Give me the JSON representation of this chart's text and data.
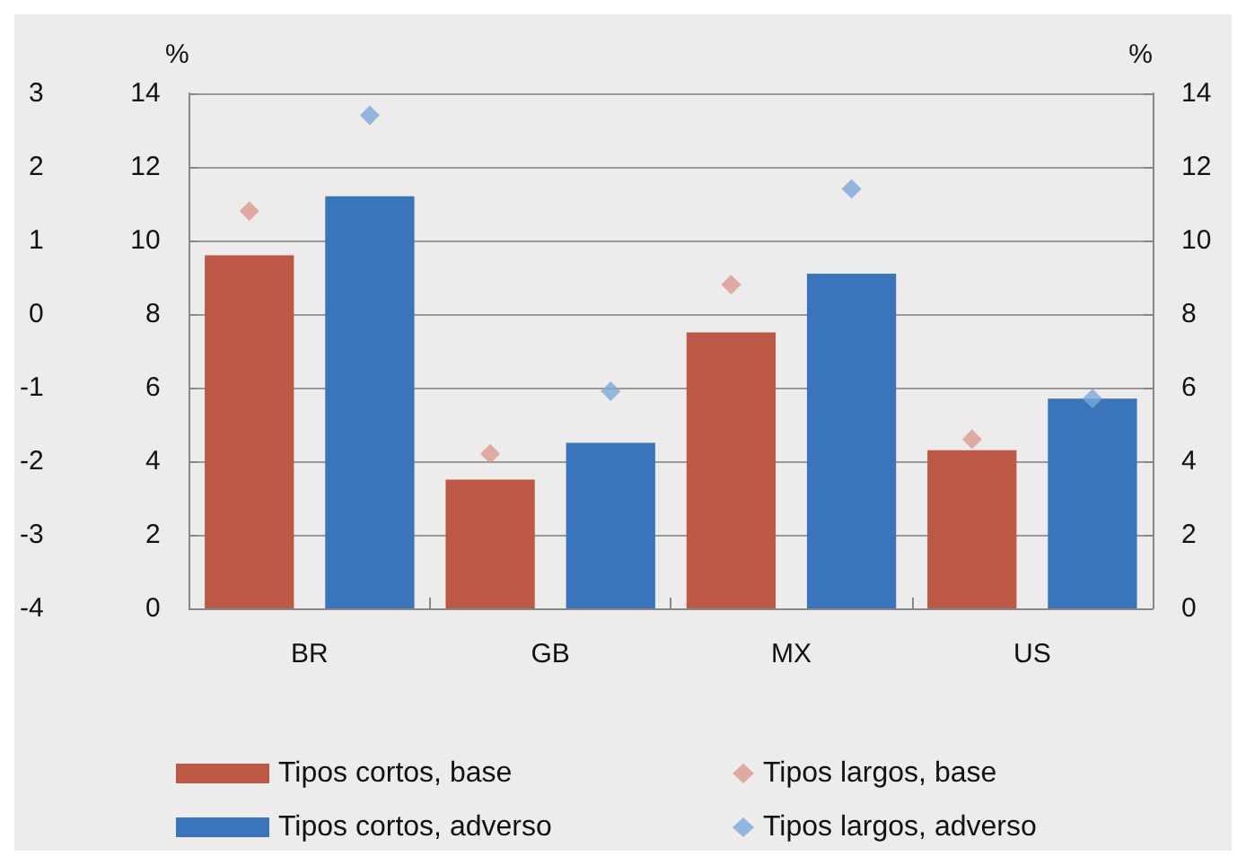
{
  "chart_data": {
    "type": "bar",
    "ylabel": "%",
    "y2label": "%",
    "categories": [
      "BR",
      "GB",
      "MX",
      "US"
    ],
    "series": [
      {
        "name": "Tipos cortos, base",
        "color": "#bc5946",
        "values": [
          9.6,
          3.5,
          7.5,
          4.3
        ]
      },
      {
        "name": "Tipos cortos, adverso",
        "color": "#3a74ba",
        "values": [
          11.2,
          4.5,
          9.1,
          5.7
        ]
      },
      {
        "name": "Tipos largos, base",
        "type": "scatter",
        "marker": "diamond",
        "color": "#d89b8e",
        "x": [
          "BR",
          "GB",
          "MX",
          "US"
        ],
        "values": [
          10.8,
          4.2,
          8.8,
          4.6
        ]
      },
      {
        "name": "Tipos largos, adverso",
        "type": "scatter",
        "marker": "diamond",
        "color": "#7ca8db",
        "x": [
          "BR",
          "GB",
          "MX",
          "US"
        ],
        "values": [
          13.4,
          5.9,
          11.4,
          5.7
        ]
      }
    ],
    "ylim": [
      0,
      14
    ],
    "yticks": [
      0,
      2,
      4,
      6,
      8,
      10,
      12,
      14
    ],
    "y2lim": [
      0,
      14
    ],
    "y2ticks": [
      0,
      2,
      4,
      6,
      8,
      10,
      12,
      14
    ],
    "y3lim": [
      -4,
      3
    ],
    "y3ticks": [
      -4,
      -3,
      -2,
      -1,
      0,
      1,
      2,
      3
    ],
    "grid": "y",
    "legend": "bottom"
  }
}
